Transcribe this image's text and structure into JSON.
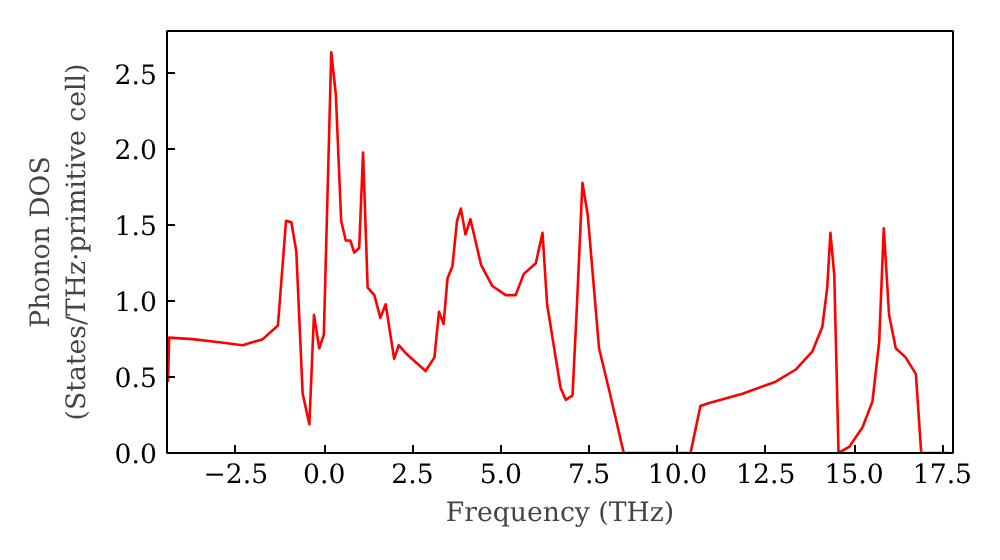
{
  "chart_data": {
    "type": "line",
    "xlabel": "Frequency (THz)",
    "ylabel": "Phonon DOS\n(States/THz·primitive cell)",
    "xlim": [
      -4.45,
      17.8
    ],
    "ylim": [
      0,
      2.78
    ],
    "xticks": [
      {
        "value": -2.5,
        "label": "−2.5"
      },
      {
        "value": 0,
        "label": "0.0"
      },
      {
        "value": 2.5,
        "label": "2.5"
      },
      {
        "value": 5,
        "label": "5.0"
      },
      {
        "value": 7.5,
        "label": "7.5"
      },
      {
        "value": 10,
        "label": "10.0"
      },
      {
        "value": 12.5,
        "label": "12.5"
      },
      {
        "value": 15,
        "label": "15.0"
      },
      {
        "value": 17.5,
        "label": "17.5"
      }
    ],
    "yticks": [
      {
        "value": 0,
        "label": "0.0"
      },
      {
        "value": 0.5,
        "label": "0.5"
      },
      {
        "value": 1,
        "label": "1.0"
      },
      {
        "value": 1.5,
        "label": "1.5"
      },
      {
        "value": 2,
        "label": "2.0"
      },
      {
        "value": 2.5,
        "label": "2.5"
      }
    ],
    "grid": false,
    "marker": "none",
    "line_style": "solid",
    "series": [
      {
        "color": "#ff0000",
        "x": [
          -4.42,
          -4.39,
          -3.73,
          -2.97,
          -2.31,
          -1.74,
          -1.31,
          -1.08,
          -0.93,
          -0.79,
          -0.61,
          -0.42,
          -0.29,
          -0.14,
          -0.01,
          0.2,
          0.33,
          0.48,
          0.61,
          0.74,
          0.85,
          0.99,
          1.1,
          1.23,
          1.42,
          1.59,
          1.74,
          1.98,
          2.11,
          2.34,
          2.87,
          3.12,
          3.25,
          3.38,
          3.49,
          3.63,
          3.76,
          3.87,
          4.0,
          4.14,
          4.44,
          4.76,
          5.14,
          5.42,
          5.65,
          5.99,
          6.18,
          6.31,
          6.69,
          6.84,
          7.03,
          7.16,
          7.31,
          7.46,
          7.78,
          8.07,
          8.48,
          10.37,
          10.65,
          10.9,
          11.84,
          12.78,
          13.35,
          13.82,
          14.1,
          14.24,
          14.33,
          14.44,
          14.56,
          14.86,
          15.24,
          15.52,
          15.71,
          15.84,
          15.99,
          16.18,
          16.46,
          16.75,
          16.9,
          17.7
        ],
        "values": [
          0.47,
          0.76,
          0.75,
          0.73,
          0.71,
          0.75,
          0.84,
          1.53,
          1.52,
          1.33,
          0.39,
          0.19,
          0.91,
          0.69,
          0.78,
          2.64,
          2.36,
          1.53,
          1.4,
          1.4,
          1.32,
          1.35,
          1.98,
          1.09,
          1.04,
          0.89,
          0.98,
          0.62,
          0.71,
          0.65,
          0.54,
          0.63,
          0.93,
          0.85,
          1.15,
          1.23,
          1.53,
          1.61,
          1.44,
          1.54,
          1.24,
          1.1,
          1.04,
          1.04,
          1.18,
          1.25,
          1.45,
          0.98,
          0.43,
          0.35,
          0.38,
          1.0,
          1.78,
          1.57,
          0.69,
          0.41,
          0,
          0,
          0.31,
          0.33,
          0.39,
          0.47,
          0.55,
          0.67,
          0.83,
          1.09,
          1.45,
          1.17,
          0,
          0.04,
          0.17,
          0.34,
          0.73,
          1.48,
          0.91,
          0.69,
          0.63,
          0.52,
          0,
          0
        ]
      }
    ]
  }
}
